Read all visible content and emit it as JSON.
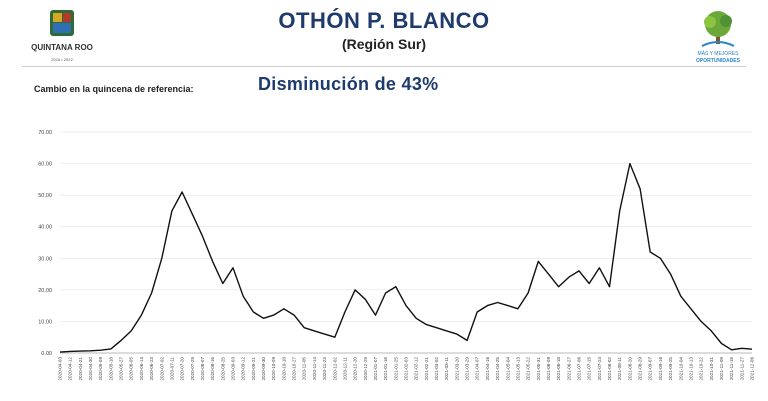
{
  "header": {
    "title": "OTHÓN P. BLANCO",
    "subtitle": "(Región Sur)",
    "logo_left_text": "QUINTANA ROO",
    "logo_left_years": "2016 • 2022",
    "logo_right_line1": "MÁS Y MEJORES",
    "logo_right_line2": "OPORTUNIDADES"
  },
  "summary": {
    "label": "Cambio en la quincena de referencia:",
    "value": "Disminución de 43%"
  },
  "colors": {
    "title": "#1f3b6e",
    "line": "#111111",
    "highlight": "#d9d9d9",
    "grid": "#dcdcdc"
  },
  "chart_data": {
    "type": "line",
    "title": "",
    "xlabel": "",
    "ylabel": "",
    "ylim": [
      0,
      70
    ],
    "yticks": [
      "0.00",
      "10.00",
      "20.00",
      "30.00",
      "40.00",
      "50.00",
      "60.00",
      "70.00"
    ],
    "grid": true,
    "highlight_from": "2021-11-14",
    "x": [
      "2020-04-03",
      "2020-04-12",
      "2020-04-21",
      "2020-04-30",
      "2020-05-09",
      "2020-05-18",
      "2020-05-27",
      "2020-06-05",
      "2020-06-14",
      "2020-06-23",
      "2020-07-02",
      "2020-07-11",
      "2020-07-20",
      "2020-07-29",
      "2020-08-07",
      "2020-08-16",
      "2020-08-25",
      "2020-09-03",
      "2020-09-12",
      "2020-09-21",
      "2020-09-30",
      "2020-10-09",
      "2020-10-18",
      "2020-10-27",
      "2020-11-05",
      "2020-11-14",
      "2020-11-23",
      "2020-12-02",
      "2020-12-11",
      "2020-12-20",
      "2020-12-29",
      "2021-01-07",
      "2021-01-16",
      "2021-01-25",
      "2021-02-03",
      "2021-02-12",
      "2021-02-21",
      "2021-03-02",
      "2021-03-11",
      "2021-03-20",
      "2021-03-29",
      "2021-04-07",
      "2021-04-16",
      "2021-04-25",
      "2021-05-04",
      "2021-05-13",
      "2021-05-22",
      "2021-05-31",
      "2021-06-09",
      "2021-06-18",
      "2021-06-27",
      "2021-07-06",
      "2021-07-15",
      "2021-07-24",
      "2021-08-02",
      "2021-08-11",
      "2021-08-20",
      "2021-08-29",
      "2021-09-07",
      "2021-09-16",
      "2021-09-25",
      "2021-10-04",
      "2021-10-13",
      "2021-10-22",
      "2021-10-31",
      "2021-11-09",
      "2021-11-18",
      "2021-11-27",
      "2021-12-06"
    ],
    "values": [
      0.3,
      0.5,
      0.6,
      0.7,
      0.9,
      1.3,
      4,
      7,
      12,
      19,
      30,
      45,
      51,
      44,
      37,
      29,
      22,
      27,
      18,
      13,
      11,
      12,
      14,
      12,
      8,
      7,
      6,
      5,
      13,
      20,
      17,
      12,
      19,
      21,
      15,
      11,
      9,
      8,
      7,
      6,
      4,
      13,
      15,
      16,
      15,
      14,
      19,
      29,
      25,
      21,
      24,
      26,
      22,
      27,
      21,
      45,
      60,
      52,
      32,
      30,
      25,
      18,
      14,
      10,
      7,
      3,
      1,
      1.5,
      1.2
    ]
  }
}
